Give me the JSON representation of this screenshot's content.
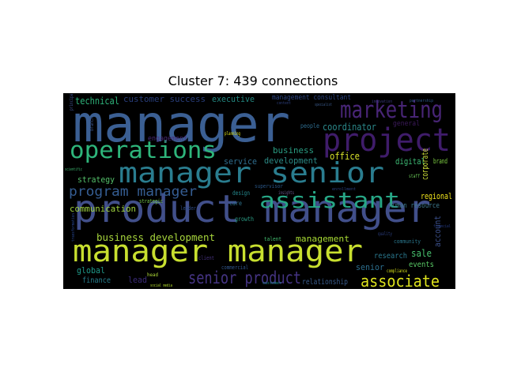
{
  "chart_data": {
    "type": "wordcloud",
    "title": "Cluster 7: 439 connections",
    "background": "#000000",
    "words": [
      {
        "text": "manager",
        "color": "#3b5f93"
      },
      {
        "text": "product manager",
        "color": "#414f8a"
      },
      {
        "text": "manager manager",
        "color": "#c8df2f"
      },
      {
        "text": "manager senior",
        "color": "#2a7d8f"
      },
      {
        "text": "project",
        "color": "#3f1c6a"
      },
      {
        "text": "marketing",
        "color": "#482576"
      },
      {
        "text": "operations",
        "color": "#2eb57b"
      },
      {
        "text": "assistant",
        "color": "#27a786"
      },
      {
        "text": "senior product",
        "color": "#453483"
      },
      {
        "text": "program manager",
        "color": "#355d92"
      },
      {
        "text": "associate",
        "color": "#dfe41d"
      },
      {
        "text": "business development",
        "color": "#a7d53c"
      },
      {
        "text": "technical",
        "color": "#2eb37a"
      },
      {
        "text": "customer success",
        "color": "#283d7a"
      },
      {
        "text": "executive",
        "color": "#22867f"
      },
      {
        "text": "management consultant",
        "color": "#2c4582"
      },
      {
        "text": "coordinator",
        "color": "#2c8a8c"
      },
      {
        "text": "business",
        "color": "#2a9d83"
      },
      {
        "text": "development",
        "color": "#2b8a86"
      },
      {
        "text": "service",
        "color": "#2f6e8f"
      },
      {
        "text": "office",
        "color": "#d8e12a"
      },
      {
        "text": "digital",
        "color": "#3dba74"
      },
      {
        "text": "corporate",
        "color": "#c9d936"
      },
      {
        "text": "brand",
        "color": "#7fd143"
      },
      {
        "text": "strategy",
        "color": "#54c06a"
      },
      {
        "text": "communication",
        "color": "#a0d440"
      },
      {
        "text": "human resource",
        "color": "#3e7a8e"
      },
      {
        "text": "regional",
        "color": "#f1e51d"
      },
      {
        "text": "management",
        "color": "#a8db34"
      },
      {
        "text": "global",
        "color": "#1f9a8a"
      },
      {
        "text": "finance",
        "color": "#277f8e"
      },
      {
        "text": "lead",
        "color": "#3b2b79"
      },
      {
        "text": "research",
        "color": "#2a788e"
      },
      {
        "text": "sale",
        "color": "#47c16e"
      },
      {
        "text": "events",
        "color": "#58c765"
      },
      {
        "text": "senior",
        "color": "#2c6f8e"
      },
      {
        "text": "account",
        "color": "#3b4f8a"
      },
      {
        "text": "relationship",
        "color": "#3a5c8c"
      },
      {
        "text": "general",
        "color": "#3c1a5b"
      },
      {
        "text": "engagement",
        "color": "#4a2b77"
      },
      {
        "text": "people",
        "color": "#2d6b8e"
      },
      {
        "text": "design",
        "color": "#25888d"
      },
      {
        "text": "care",
        "color": "#2d738e"
      },
      {
        "text": "growth",
        "color": "#2a9a83"
      },
      {
        "text": "community",
        "color": "#2a788e"
      },
      {
        "text": "talent",
        "color": "#43bf71"
      },
      {
        "text": "client",
        "color": "#46327e"
      },
      {
        "text": "commercial",
        "color": "#31568c"
      },
      {
        "text": "supervisor",
        "color": "#2a5686"
      },
      {
        "text": "strategic",
        "color": "#7ad151"
      },
      {
        "text": "leader",
        "color": "#2f4d88"
      },
      {
        "text": "insights",
        "color": "#6b5a8f"
      },
      {
        "text": "compliance",
        "color": "#d8e219"
      },
      {
        "text": "planning",
        "color": "#dde318"
      },
      {
        "text": "social media",
        "color": "#b5de2b"
      },
      {
        "text": "head",
        "color": "#b0dc38"
      },
      {
        "text": "scientific",
        "color": "#3fbc73"
      },
      {
        "text": "staff",
        "color": "#6bcd59"
      },
      {
        "text": "partnership",
        "color": "#2e5a8d"
      },
      {
        "text": "principal",
        "color": "#3d4e8a"
      },
      {
        "text": "branch",
        "color": "#3b538b"
      },
      {
        "text": "enrollment",
        "color": "#2a4182"
      },
      {
        "text": "transformation",
        "color": "#26438d"
      },
      {
        "text": "financial",
        "color": "#253c86"
      },
      {
        "text": "content",
        "color": "#2d3f7d"
      },
      {
        "text": "customer",
        "color": "#1b8c8a"
      },
      {
        "text": "quality",
        "color": "#2c3f80"
      },
      {
        "text": "specialist",
        "color": "#3b5b8c"
      },
      {
        "text": "innovation",
        "color": "#3d3c87"
      }
    ]
  }
}
